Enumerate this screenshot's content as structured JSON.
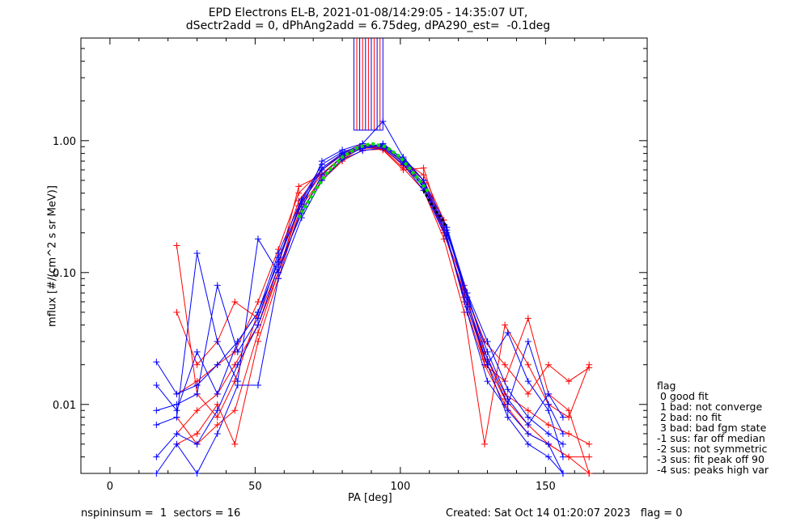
{
  "chart_data": {
    "type": "line",
    "title_line1": "EPD Electrons EL-B, 2021-01-08/14:29:05 - 14:35:07 UT,",
    "title_line2": "dSectr2add = 0, dPhAng2add = 6.75deg, dPA290_est=  -0.1deg",
    "xlabel": "PA [deg]",
    "ylabel": "mflux [#/(cm^2 s sr MeV)]",
    "xlim": [
      -10,
      185
    ],
    "ylim": [
      0.003,
      6
    ],
    "yscale": "log",
    "xticks": [
      0,
      50,
      100,
      150
    ],
    "xtick_labels": [
      "0",
      "50",
      "100",
      "150"
    ],
    "yticks": [
      0.01,
      0.1,
      1.0
    ],
    "ytick_labels": [
      "0.01",
      "0.10",
      "1.00"
    ],
    "colors": {
      "red": "#ff0000",
      "blue": "#0000ff",
      "green": "#00dd00",
      "black": "#000000"
    },
    "series_red": [
      {
        "x": [
          23,
          30,
          37,
          43,
          51,
          58,
          65,
          73,
          80,
          87,
          94,
          101,
          108,
          115,
          122,
          129,
          136,
          144,
          151,
          158,
          165
        ],
        "y": [
          0.006,
          0.009,
          0.012,
          0.02,
          0.04,
          0.1,
          0.3,
          0.52,
          0.72,
          0.9,
          0.88,
          0.65,
          0.45,
          0.2,
          0.07,
          0.025,
          0.012,
          0.009,
          0.007,
          0.006,
          0.005
        ]
      },
      {
        "x": [
          23,
          30,
          37,
          43,
          51,
          58,
          65,
          73,
          80,
          87,
          94,
          101,
          108,
          115,
          122,
          129,
          136,
          144,
          151,
          158,
          165
        ],
        "y": [
          0.16,
          0.012,
          0.008,
          0.015,
          0.05,
          0.12,
          0.35,
          0.6,
          0.8,
          0.95,
          0.9,
          0.7,
          0.5,
          0.22,
          0.06,
          0.02,
          0.01,
          0.006,
          0.005,
          0.004,
          0.004
        ]
      },
      {
        "x": [
          23,
          30,
          37,
          43,
          51,
          58,
          65,
          73,
          80,
          87,
          94,
          101,
          108,
          115,
          122,
          129,
          136,
          144,
          151,
          158,
          165
        ],
        "y": [
          0.005,
          0.006,
          0.01,
          0.005,
          0.03,
          0.09,
          0.28,
          0.5,
          0.7,
          0.85,
          0.86,
          0.62,
          0.42,
          0.18,
          0.05,
          0.005,
          0.04,
          0.02,
          0.01,
          0.008,
          0.02
        ]
      },
      {
        "x": [
          23,
          30,
          37,
          43,
          51,
          58,
          65,
          73,
          80,
          87,
          94,
          101,
          108,
          115,
          122,
          129,
          136,
          144,
          151,
          158,
          165
        ],
        "y": [
          0.05,
          0.02,
          0.03,
          0.06,
          0.045,
          0.11,
          0.45,
          0.55,
          0.75,
          0.92,
          0.85,
          0.6,
          0.62,
          0.2,
          0.08,
          0.02,
          0.015,
          0.045,
          0.012,
          0.009,
          0.003
        ]
      },
      {
        "x": [
          23,
          30,
          37,
          43,
          51,
          58,
          65,
          73,
          80,
          87,
          94,
          101,
          108,
          115,
          122,
          129,
          136,
          144,
          151,
          158,
          165
        ],
        "y": [
          0.008,
          0.005,
          0.007,
          0.009,
          0.035,
          0.1,
          0.32,
          0.56,
          0.76,
          0.88,
          0.87,
          0.66,
          0.48,
          0.21,
          0.065,
          0.022,
          0.011,
          0.007,
          0.005,
          0.004,
          0.003
        ]
      },
      {
        "x": [
          23,
          30,
          37,
          43,
          51,
          58,
          65,
          73,
          80,
          87,
          94,
          101,
          108,
          115,
          122,
          129,
          136,
          144,
          151,
          158,
          165
        ],
        "y": [
          0.012,
          0.015,
          0.02,
          0.025,
          0.06,
          0.15,
          0.4,
          0.6,
          0.78,
          0.9,
          0.9,
          0.7,
          0.55,
          0.25,
          0.075,
          0.03,
          0.02,
          0.012,
          0.02,
          0.015,
          0.019
        ]
      }
    ],
    "series_blue": [
      {
        "x": [
          16,
          23,
          30,
          37,
          44,
          51,
          58,
          66,
          73,
          80,
          87,
          94,
          101,
          108,
          116,
          123,
          130,
          137,
          144,
          151,
          156
        ],
        "y": [
          0.021,
          0.012,
          0.014,
          0.02,
          0.03,
          0.05,
          0.12,
          0.35,
          0.62,
          0.8,
          0.9,
          0.92,
          0.7,
          0.45,
          0.2,
          0.07,
          0.03,
          0.013,
          0.008,
          0.006,
          0.005
        ]
      },
      {
        "x": [
          16,
          23,
          30,
          37,
          44,
          51,
          58,
          66,
          73,
          80,
          87,
          94,
          101,
          108,
          116,
          123,
          130,
          137,
          144,
          151,
          156
        ],
        "y": [
          0.007,
          0.008,
          0.14,
          0.03,
          0.015,
          0.18,
          0.1,
          0.3,
          0.7,
          0.85,
          0.95,
          1.4,
          0.75,
          0.5,
          0.22,
          0.06,
          0.02,
          0.035,
          0.015,
          0.009,
          0.004
        ]
      },
      {
        "x": [
          16,
          23,
          30,
          37,
          44,
          51,
          58,
          66,
          73,
          80,
          87,
          94,
          101,
          108,
          116,
          123,
          130,
          137,
          144,
          151,
          156
        ],
        "y": [
          0.004,
          0.006,
          0.005,
          0.009,
          0.02,
          0.04,
          0.11,
          0.28,
          0.55,
          0.75,
          0.88,
          0.9,
          0.68,
          0.44,
          0.19,
          0.05,
          0.015,
          0.009,
          0.006,
          0.005,
          0.003
        ]
      },
      {
        "x": [
          16,
          23,
          30,
          37,
          44,
          51,
          58,
          66,
          73,
          80,
          87,
          94,
          101,
          108,
          116,
          123,
          130,
          137,
          144,
          151,
          156
        ],
        "y": [
          0.009,
          0.01,
          0.012,
          0.08,
          0.025,
          0.045,
          0.13,
          0.33,
          0.6,
          0.78,
          0.87,
          0.95,
          0.72,
          0.47,
          0.21,
          0.065,
          0.025,
          0.011,
          0.007,
          0.012,
          0.008
        ]
      },
      {
        "x": [
          16,
          23,
          30,
          37,
          44,
          51,
          58,
          66,
          73,
          80,
          87,
          94,
          101,
          108,
          116,
          123,
          130,
          137,
          144,
          151,
          156
        ],
        "y": [
          0.003,
          0.005,
          0.003,
          0.006,
          0.014,
          0.014,
          0.09,
          0.26,
          0.5,
          0.72,
          0.84,
          0.88,
          0.66,
          0.42,
          0.18,
          0.055,
          0.02,
          0.008,
          0.005,
          0.004,
          0.003
        ]
      },
      {
        "x": [
          16,
          23,
          30,
          37,
          44,
          51,
          58,
          66,
          73,
          80,
          87,
          94,
          101,
          108,
          116,
          123,
          130,
          137,
          144,
          151,
          156
        ],
        "y": [
          0.014,
          0.009,
          0.025,
          0.012,
          0.03,
          0.05,
          0.14,
          0.36,
          0.66,
          0.82,
          0.92,
          0.93,
          0.73,
          0.5,
          0.22,
          0.07,
          0.022,
          0.01,
          0.03,
          0.01,
          0.006
        ]
      }
    ],
    "series_green": {
      "x": [
        65,
        70,
        75,
        80,
        85,
        90,
        95,
        100,
        105,
        110
      ],
      "y": [
        0.26,
        0.4,
        0.58,
        0.75,
        0.88,
        0.95,
        0.9,
        0.75,
        0.55,
        0.4
      ]
    },
    "series_black": {
      "x": [
        108,
        110,
        112,
        114,
        116
      ],
      "y": [
        0.42,
        0.35,
        0.3,
        0.26,
        0.22
      ]
    },
    "spikes_red": [
      85,
      87,
      89,
      91,
      93
    ],
    "spikes_blue": [
      84,
      86,
      88,
      90,
      92,
      94
    ]
  },
  "legend": {
    "title": "flag",
    "items": [
      " 0 good fit",
      " 1 bad: not converge",
      " 2 bad: no fit",
      " 3 bad: bad fgm state",
      "-1 sus: far off median",
      "-2 sus: not symmetric",
      "-3 sus: fit peak off 90",
      "-4 sus: peaks high var"
    ]
  },
  "footer": {
    "left": "nspininsum =  1  sectors = 16",
    "right": "Created: Sat Oct 14 01:20:07 2023   flag = 0"
  }
}
